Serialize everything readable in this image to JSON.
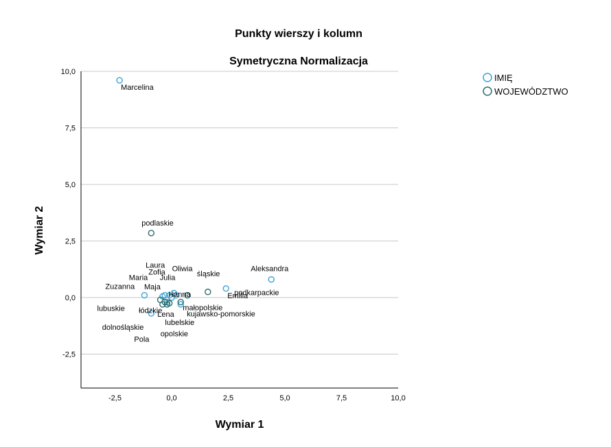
{
  "chart_data": {
    "type": "scatter",
    "title": "Punkty wierszy i kolumn",
    "subtitle": "Symetryczna Normalizacja",
    "xlabel": "Wymiar 1",
    "ylabel": "Wymiar 2",
    "xlim": [
      -4,
      10
    ],
    "ylim": [
      -4,
      10
    ],
    "xticks": [
      "-2,5",
      "0,0",
      "2,5",
      "5,0",
      "7,5",
      "10,0"
    ],
    "yticks": [
      "-2,5",
      "0,0",
      "2,5",
      "5,0",
      "7,5",
      "10,0"
    ],
    "grid": "horizontal",
    "legend_position": "top-right",
    "colors": {
      "IMIĘ": "#3aa2d4",
      "WOJEWÓDZTWO": "#2b6b6b",
      "axis": "#000000",
      "grid": "#c8c8c8"
    },
    "series": [
      {
        "name": "IMIĘ",
        "points": [
          {
            "label": "Marcelina",
            "x": -2.3,
            "y": 9.6
          },
          {
            "label": "Aleksandra",
            "x": 4.4,
            "y": 0.8
          },
          {
            "label": "Emilia",
            "x": 2.4,
            "y": 0.4
          },
          {
            "label": "Laura",
            "x": -0.3,
            "y": 0.1
          },
          {
            "label": "Oliwia",
            "x": 0.2,
            "y": 0.1
          },
          {
            "label": "Maria",
            "x": -0.4,
            "y": 0.05
          },
          {
            "label": "Zofia",
            "x": 0.1,
            "y": 0.2
          },
          {
            "label": "Julia",
            "x": -0.1,
            "y": 0.1
          },
          {
            "label": "Zuzanna",
            "x": -1.2,
            "y": 0.1
          },
          {
            "label": "Maja",
            "x": 0.0,
            "y": 0.0
          },
          {
            "label": "Hanna",
            "x": 0.4,
            "y": -0.3
          },
          {
            "label": "Lena",
            "x": -0.9,
            "y": -0.7
          },
          {
            "label": "Pola",
            "x": -0.2,
            "y": -0.2
          }
        ]
      },
      {
        "name": "WOJEWÓDZTWO",
        "points": [
          {
            "label": "podlaskie",
            "x": -0.9,
            "y": 2.85
          },
          {
            "label": "śląskie",
            "x": 1.6,
            "y": 0.25
          },
          {
            "label": "podkarpackie",
            "x": 0.7,
            "y": 0.1
          },
          {
            "label": "małopolskie",
            "x": 0.4,
            "y": -0.2
          },
          {
            "label": "kujawsko-pomorskie",
            "x": 0.7,
            "y": 0.1
          },
          {
            "label": "lubelskie",
            "x": -0.2,
            "y": -0.3
          },
          {
            "label": "opolskie",
            "x": -0.1,
            "y": -0.25
          },
          {
            "label": "lubuskie",
            "x": -0.5,
            "y": -0.1
          },
          {
            "label": "łódzkie",
            "x": -0.3,
            "y": -0.2
          },
          {
            "label": "dolnośląskie",
            "x": -0.4,
            "y": -0.3
          }
        ]
      }
    ]
  }
}
